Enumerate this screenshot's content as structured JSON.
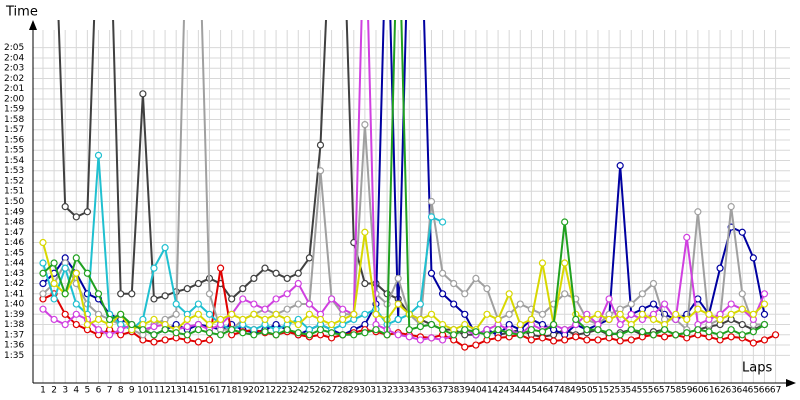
{
  "chart_data": {
    "type": "line",
    "y_label": "Time",
    "x_label": "Laps",
    "x": [
      1,
      2,
      3,
      4,
      5,
      6,
      7,
      8,
      9,
      10,
      11,
      12,
      13,
      14,
      15,
      16,
      17,
      18,
      19,
      20,
      21,
      22,
      23,
      24,
      25,
      26,
      27,
      28,
      29,
      30,
      31,
      32,
      33,
      34,
      35,
      36,
      37,
      38,
      39,
      40,
      41,
      42,
      43,
      44,
      45,
      46,
      47,
      48,
      49,
      50,
      51,
      52,
      53,
      54,
      55,
      56,
      57,
      58,
      59,
      60,
      61,
      62,
      63,
      64,
      65,
      66,
      67
    ],
    "xlim": [
      0.1,
      68.3
    ],
    "xticks": [
      1,
      2,
      3,
      4,
      5,
      6,
      7,
      8,
      9,
      10,
      11,
      12,
      13,
      14,
      15,
      16,
      17,
      18,
      19,
      20,
      21,
      22,
      23,
      24,
      25,
      26,
      27,
      28,
      29,
      30,
      31,
      32,
      33,
      34,
      35,
      36,
      37,
      38,
      39,
      40,
      41,
      42,
      43,
      44,
      45,
      46,
      47,
      48,
      49,
      50,
      51,
      52,
      53,
      54,
      55,
      56,
      57,
      58,
      59,
      60,
      61,
      62,
      63,
      64,
      65,
      66,
      67
    ],
    "ylim": [
      92.3,
      127.7
    ],
    "yticks": [
      {
        "value": 95,
        "label": "1:35"
      },
      {
        "value": 96,
        "label": "1:36"
      },
      {
        "value": 97,
        "label": "1:37"
      },
      {
        "value": 98,
        "label": "1:38"
      },
      {
        "value": 99,
        "label": "1:39"
      },
      {
        "value": 100,
        "label": "1:40"
      },
      {
        "value": 101,
        "label": "1:41"
      },
      {
        "value": 102,
        "label": "1:42"
      },
      {
        "value": 103,
        "label": "1:43"
      },
      {
        "value": 104,
        "label": "1:44"
      },
      {
        "value": 105,
        "label": "1:45"
      },
      {
        "value": 106,
        "label": "1:46"
      },
      {
        "value": 107,
        "label": "1:47"
      },
      {
        "value": 108,
        "label": "1:48"
      },
      {
        "value": 109,
        "label": "1:49"
      },
      {
        "value": 110,
        "label": "1:50"
      },
      {
        "value": 111,
        "label": "1:51"
      },
      {
        "value": 112,
        "label": "1:52"
      },
      {
        "value": 113,
        "label": "1:53"
      },
      {
        "value": 114,
        "label": "1:54"
      },
      {
        "value": 115,
        "label": "1:55"
      },
      {
        "value": 116,
        "label": "1:56"
      },
      {
        "value": 117,
        "label": "1:57"
      },
      {
        "value": 118,
        "label": "1:58"
      },
      {
        "value": 119,
        "label": "1:59"
      },
      {
        "value": 120,
        "label": "2:00"
      },
      {
        "value": 121,
        "label": "2:01"
      },
      {
        "value": 122,
        "label": "2:02"
      },
      {
        "value": 123,
        "label": "2:03"
      },
      {
        "value": 124,
        "label": "2:04"
      },
      {
        "value": 125,
        "label": "2:05"
      }
    ],
    "grid": true,
    "series": [
      {
        "color": "#404040",
        "values": [
          null,
          140,
          109.5,
          108.5,
          109,
          140,
          140,
          101,
          101,
          120.5,
          100.5,
          100.8,
          101.2,
          101.5,
          102,
          102.5,
          102,
          100.5,
          101.5,
          102.5,
          103.5,
          103,
          102.5,
          103,
          104.5,
          115.5,
          140,
          140,
          106,
          102,
          102,
          101,
          100.5,
          99,
          98.5,
          98,
          97.5,
          97.5,
          97,
          97,
          97.5,
          97,
          97.2,
          97.5,
          97,
          96.8,
          97,
          97.5,
          97,
          97.2,
          97.5,
          97,
          97.2,
          97.5,
          97,
          97.3,
          97.5,
          97,
          97.2,
          97.5,
          97.8,
          98,
          98.5,
          98,
          97.5,
          98,
          null
        ]
      },
      {
        "color": "#0000a0",
        "values": [
          102,
          103,
          104.5,
          103,
          101,
          100.5,
          99,
          98.5,
          98,
          97.5,
          97,
          97.5,
          98,
          97.5,
          98,
          97.8,
          97.5,
          98,
          97.5,
          97.2,
          97.5,
          98,
          97.5,
          97,
          97.5,
          98,
          97.5,
          97,
          97.5,
          98,
          100,
          140,
          98.5,
          140,
          140,
          103,
          101,
          100,
          99,
          97,
          97.5,
          97,
          98,
          97.5,
          98.5,
          98,
          97.5,
          97,
          98,
          97.5,
          98,
          98.5,
          113.5,
          99,
          99.5,
          100,
          99,
          98.5,
          99,
          100.5,
          99,
          103.5,
          107.5,
          107,
          104.5,
          99,
          null
        ]
      },
      {
        "color": "#e00000",
        "values": [
          100.5,
          101,
          99,
          98,
          97.5,
          97,
          97.5,
          97,
          97.3,
          96.5,
          96.3,
          96.5,
          96.7,
          96.5,
          96.3,
          96.5,
          103.5,
          97,
          97.3,
          97.5,
          97.2,
          97,
          97.3,
          97,
          96.8,
          97,
          96.7,
          97,
          97.2,
          97.5,
          97.3,
          97,
          97.2,
          97,
          96.8,
          96.7,
          97,
          96.5,
          95.8,
          96,
          96.5,
          96.7,
          96.8,
          97,
          96.5,
          96.7,
          96.4,
          96.5,
          96.8,
          96.5,
          96.5,
          96.7,
          96.4,
          96.5,
          96.8,
          97,
          96.8,
          97,
          96.7,
          97,
          96.8,
          96.5,
          96.8,
          96.7,
          96.2,
          96.5,
          97
        ]
      },
      {
        "color": "#a0a0a0",
        "values": [
          101,
          102,
          104,
          102,
          100,
          99,
          98.5,
          98,
          97.5,
          97,
          98,
          98.5,
          99,
          140,
          140,
          101,
          97.5,
          97.5,
          98.5,
          99,
          99.5,
          99,
          99.5,
          100,
          100,
          113,
          100.5,
          99,
          99,
          117.5,
          101,
          100,
          102.5,
          99,
          98,
          110,
          103,
          102,
          101,
          102.5,
          101.5,
          98.5,
          99,
          100,
          99.5,
          99,
          100,
          101,
          100.5,
          98.5,
          98,
          99,
          99.5,
          100,
          101,
          102,
          98.5,
          98.5,
          97.5,
          109,
          98,
          98.5,
          109.5,
          101,
          98,
          98,
          null
        ]
      },
      {
        "color": "#20c0d0",
        "values": [
          104,
          100.5,
          103.5,
          100,
          99,
          114.5,
          99,
          98,
          97.5,
          98.5,
          103.5,
          105.5,
          100,
          99,
          100,
          99,
          98,
          97.5,
          98,
          97.5,
          98,
          97.5,
          98,
          98.5,
          97.5,
          98,
          97.5,
          98,
          98.5,
          99,
          99.5,
          98,
          98.5,
          99,
          100,
          108.5,
          108,
          null,
          null,
          null,
          null,
          null,
          null,
          null,
          null,
          null,
          null,
          null,
          null,
          null,
          null,
          null,
          null,
          null,
          null,
          null,
          null,
          null,
          null,
          null,
          null,
          null,
          null,
          null,
          null,
          null,
          null
        ]
      },
      {
        "color": "#d040e0",
        "values": [
          99.5,
          98.5,
          98,
          99,
          98.5,
          97.5,
          97,
          97.5,
          98,
          97.5,
          97.8,
          98,
          97.5,
          97.8,
          98,
          97.5,
          98,
          99,
          100.5,
          100,
          99.5,
          100.5,
          101,
          102,
          100,
          99,
          100.5,
          99.5,
          99,
          140,
          98,
          97.5,
          97,
          96.8,
          96.5,
          96.7,
          96.5,
          97,
          97.5,
          97,
          97.5,
          98,
          97.5,
          97,
          98,
          97.5,
          98,
          97.5,
          98,
          99,
          98,
          100.5,
          98,
          99,
          98.5,
          99,
          100,
          98.5,
          106.5,
          98,
          98.5,
          99,
          100,
          99.5,
          98.5,
          101,
          null
        ]
      },
      {
        "color": "#d8d800",
        "values": [
          106,
          102,
          101,
          103,
          98,
          98.5,
          98,
          99,
          97.5,
          98,
          98.5,
          98,
          97.5,
          98.5,
          99,
          98,
          98.5,
          99,
          98.5,
          99,
          98.5,
          99,
          98.5,
          98,
          99,
          98.5,
          98,
          98.5,
          99,
          107,
          99,
          98.5,
          100,
          99,
          98.5,
          99,
          98,
          97.5,
          98,
          97.5,
          99,
          98.5,
          101,
          98,
          98.5,
          104,
          98,
          104,
          99,
          98.5,
          99,
          98.5,
          99,
          98,
          99,
          98.5,
          98,
          99,
          98.5,
          99.5,
          99,
          98.5,
          99,
          99.5,
          99,
          100,
          null
        ]
      },
      {
        "color": "#20a020",
        "values": [
          103,
          104,
          101,
          104.5,
          103,
          101,
          98.5,
          99,
          98,
          97.5,
          97,
          97.5,
          97.2,
          97,
          97.5,
          97.2,
          97,
          97.5,
          97.2,
          97,
          97.3,
          97,
          97.5,
          97.2,
          97,
          97.5,
          97.2,
          97,
          97,
          97.2,
          97.5,
          97,
          140,
          97.5,
          97.8,
          98,
          97.5,
          97,
          97.5,
          97.3,
          97,
          97.5,
          97.2,
          97,
          97.5,
          97.3,
          98,
          108,
          98.5,
          97.5,
          97.5,
          97.2,
          97,
          97.5,
          97.3,
          97,
          97.5,
          97,
          97.2,
          97.5,
          97.3,
          97,
          97.5,
          97,
          97.3,
          98,
          null
        ]
      }
    ]
  }
}
